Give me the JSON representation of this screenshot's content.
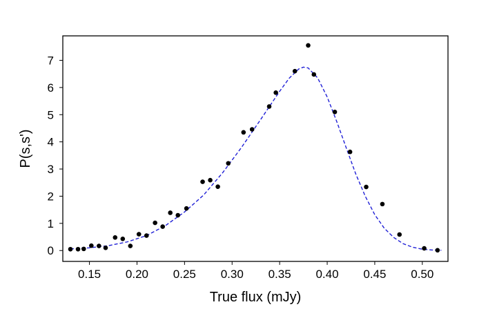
{
  "chart_data": {
    "type": "scatter",
    "title": "",
    "xlabel": "True flux  (mJy)",
    "ylabel": "P(s,s')",
    "xlim": [
      0.122,
      0.527
    ],
    "ylim": [
      -0.4,
      7.9
    ],
    "grid": false,
    "x_ticks": [
      0.15,
      0.2,
      0.25,
      0.3,
      0.35,
      0.4,
      0.45,
      0.5
    ],
    "x_tick_labels": [
      "0.15",
      "0.20",
      "0.25",
      "0.30",
      "0.35",
      "0.40",
      "0.45",
      "0.50"
    ],
    "y_ticks": [
      0,
      1,
      2,
      3,
      4,
      5,
      6,
      7
    ],
    "y_tick_labels": [
      "0",
      "1",
      "2",
      "3",
      "4",
      "5",
      "6",
      "7"
    ],
    "points": {
      "color": "#000000",
      "x": [
        0.13,
        0.138,
        0.144,
        0.152,
        0.16,
        0.167,
        0.177,
        0.185,
        0.193,
        0.202,
        0.21,
        0.219,
        0.227,
        0.235,
        0.243,
        0.252,
        0.269,
        0.277,
        0.285,
        0.296,
        0.312,
        0.321,
        0.339,
        0.346,
        0.366,
        0.38,
        0.386,
        0.408,
        0.424,
        0.441,
        0.458,
        0.476,
        0.502,
        0.516
      ],
      "y": [
        0.05,
        0.05,
        0.06,
        0.18,
        0.17,
        0.1,
        0.48,
        0.43,
        0.17,
        0.6,
        0.55,
        1.02,
        0.88,
        1.39,
        1.3,
        1.55,
        2.53,
        2.59,
        2.35,
        3.21,
        4.35,
        4.46,
        5.3,
        5.81,
        6.6,
        7.55,
        6.48,
        5.1,
        3.63,
        2.34,
        1.71,
        0.59,
        0.08,
        0.01
      ]
    },
    "fit_curve": {
      "style": "dashed",
      "color": "#1f1fd6",
      "x": [
        0.13,
        0.15,
        0.17,
        0.19,
        0.21,
        0.23,
        0.25,
        0.27,
        0.29,
        0.31,
        0.33,
        0.35,
        0.36,
        0.37,
        0.375,
        0.38,
        0.39,
        0.4,
        0.41,
        0.42,
        0.43,
        0.44,
        0.45,
        0.46,
        0.47,
        0.48,
        0.49,
        0.5,
        0.51,
        0.52
      ],
      "y": [
        0.06,
        0.1,
        0.18,
        0.32,
        0.55,
        0.92,
        1.42,
        2.04,
        2.86,
        3.8,
        4.82,
        5.86,
        6.34,
        6.68,
        6.75,
        6.72,
        6.35,
        5.65,
        4.75,
        3.78,
        2.82,
        2.0,
        1.32,
        0.82,
        0.48,
        0.25,
        0.12,
        0.05,
        0.02,
        0.01
      ]
    }
  }
}
